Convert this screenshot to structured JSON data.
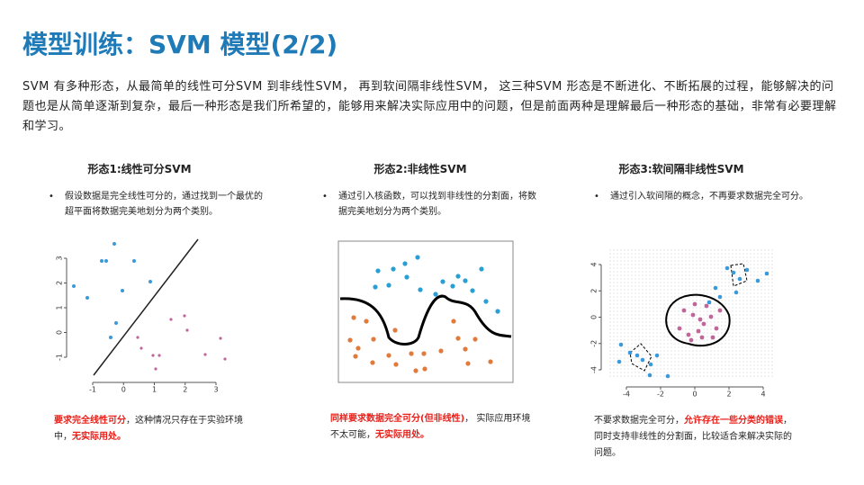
{
  "title": "模型训练：SVM 模型(2/2)",
  "intro": "SVM 有多种形态，从最简单的线性可分SVM 到非线性SVM， 再到软间隔非线性SVM， 这三种SVM 形态是不断进化、不断拓展的过程，能够解决的问题也是从简单逐渐到复杂，最后一种形态是我们所希望的，能够用来解决实际应用中的问题，但是前面两种是理解最后一种形态的基础，非常有必要理解和学习。",
  "panels": [
    {
      "heading": "形态1:线性可分SVM",
      "bullet": "假设数据是完全线性可分的，通过找到一个最优的超平面将数据完美地划分为两个类别。",
      "plot": {
        "xticks": [
          -1,
          0,
          1,
          2,
          3
        ],
        "yticks": [
          3,
          2,
          1,
          0,
          -1
        ]
      },
      "note": [
        {
          "text": "要求完全线性可分",
          "red": true
        },
        {
          "text": "，这种情况只存在于实验环境中，",
          "red": false
        },
        {
          "text": "无实际用处。",
          "red": true
        }
      ]
    },
    {
      "heading": "形态2:非线性SVM",
      "bullet": "通过引入核函数，可以找到非线性的分割面，将数据完美地划分为两个类别。",
      "note": [
        {
          "text": "同样要求数据完全可分(但非线性)",
          "red": true
        },
        {
          "text": "， 实际应用环境不太可能，",
          "red": false
        },
        {
          "text": "无实际用处。",
          "red": true
        }
      ]
    },
    {
      "heading": "形态3:软间隔非线性SVM",
      "bullet": "通过引入软间隔的概念，不再要求数据完全可分。",
      "plot": {
        "xticks": [
          -4,
          -2,
          0,
          2,
          4
        ],
        "yticks": [
          4,
          2,
          0,
          -2,
          -4
        ]
      },
      "note": [
        {
          "text": "不要求数据完全可分，",
          "red": false
        },
        {
          "text": "允许存在一些分类的错误",
          "red": true
        },
        {
          "text": "，同时支持非线性的分割面，比较适合来解决实际的问题。",
          "red": false
        }
      ]
    }
  ]
}
